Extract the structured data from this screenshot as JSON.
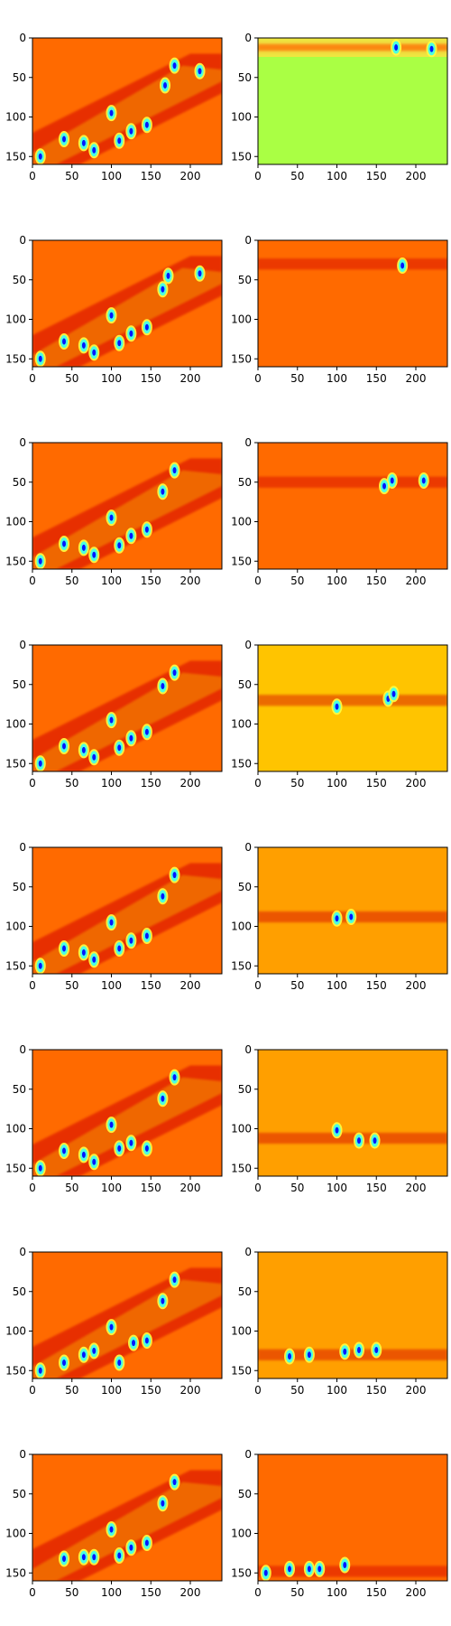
{
  "chart_data": {
    "type": "heatmap",
    "layout": "8 rows x 2 columns of image panels",
    "colormap": "jet",
    "x_axis": {
      "range": [
        0,
        240
      ],
      "ticks": [
        0,
        50,
        100,
        150,
        200
      ]
    },
    "y_axis": {
      "range": [
        160,
        0
      ],
      "inverted": true,
      "ticks": [
        0,
        50,
        100,
        150
      ]
    },
    "tick_text": {
      "x": [
        "0",
        "50",
        "100",
        "150",
        "200"
      ],
      "y": [
        "0",
        "50",
        "100",
        "150"
      ]
    },
    "colors": {
      "orange_red": "#ff6a00",
      "orange": "#ff9f00",
      "yellow_orange": "#ffc400",
      "green_yellow": "#aaff44",
      "dark_red": "#d40000",
      "blue": "#0018ff",
      "cyan": "#4cffe0"
    },
    "panels": [
      {
        "row": 0,
        "col": 0,
        "background": "#ff6a00",
        "band_center": null,
        "hotspots": [
          [
            10,
            150
          ],
          [
            40,
            128
          ],
          [
            65,
            133
          ],
          [
            78,
            142
          ],
          [
            100,
            95
          ],
          [
            110,
            130
          ],
          [
            125,
            118
          ],
          [
            145,
            110
          ],
          [
            168,
            60
          ],
          [
            180,
            35
          ],
          [
            212,
            42
          ]
        ]
      },
      {
        "row": 0,
        "col": 1,
        "background": "#aaff44",
        "band_center": 12,
        "hotspots": [
          [
            175,
            12
          ],
          [
            220,
            14
          ]
        ]
      },
      {
        "row": 1,
        "col": 0,
        "background": "#ff6a00",
        "band_center": null,
        "hotspots": [
          [
            10,
            150
          ],
          [
            40,
            128
          ],
          [
            65,
            133
          ],
          [
            78,
            142
          ],
          [
            100,
            95
          ],
          [
            110,
            130
          ],
          [
            125,
            118
          ],
          [
            145,
            110
          ],
          [
            165,
            62
          ],
          [
            172,
            45
          ],
          [
            212,
            42
          ]
        ]
      },
      {
        "row": 1,
        "col": 1,
        "background": "#ff6a00",
        "band_center": 30,
        "hotspots": [
          [
            183,
            32
          ]
        ]
      },
      {
        "row": 2,
        "col": 0,
        "background": "#ff6a00",
        "band_center": null,
        "hotspots": [
          [
            10,
            150
          ],
          [
            40,
            128
          ],
          [
            65,
            133
          ],
          [
            78,
            142
          ],
          [
            100,
            95
          ],
          [
            110,
            130
          ],
          [
            125,
            118
          ],
          [
            145,
            110
          ],
          [
            165,
            62
          ],
          [
            180,
            35
          ]
        ]
      },
      {
        "row": 2,
        "col": 1,
        "background": "#ff6a00",
        "band_center": 50,
        "hotspots": [
          [
            170,
            48
          ],
          [
            210,
            48
          ],
          [
            160,
            55
          ]
        ]
      },
      {
        "row": 3,
        "col": 0,
        "background": "#ff6a00",
        "band_center": null,
        "hotspots": [
          [
            10,
            150
          ],
          [
            40,
            128
          ],
          [
            65,
            133
          ],
          [
            78,
            142
          ],
          [
            100,
            95
          ],
          [
            110,
            130
          ],
          [
            125,
            118
          ],
          [
            145,
            110
          ],
          [
            165,
            52
          ],
          [
            180,
            35
          ]
        ]
      },
      {
        "row": 3,
        "col": 1,
        "background": "#ffc400",
        "band_center": 70,
        "hotspots": [
          [
            100,
            78
          ],
          [
            165,
            68
          ],
          [
            172,
            62
          ]
        ]
      },
      {
        "row": 4,
        "col": 0,
        "background": "#ff6a00",
        "band_center": null,
        "hotspots": [
          [
            10,
            150
          ],
          [
            40,
            128
          ],
          [
            65,
            133
          ],
          [
            78,
            142
          ],
          [
            100,
            95
          ],
          [
            110,
            128
          ],
          [
            125,
            118
          ],
          [
            145,
            112
          ],
          [
            165,
            62
          ],
          [
            180,
            35
          ]
        ]
      },
      {
        "row": 4,
        "col": 1,
        "background": "#ff9f00",
        "band_center": 88,
        "hotspots": [
          [
            100,
            90
          ],
          [
            118,
            88
          ]
        ]
      },
      {
        "row": 5,
        "col": 0,
        "background": "#ff6a00",
        "band_center": null,
        "hotspots": [
          [
            10,
            150
          ],
          [
            40,
            128
          ],
          [
            65,
            133
          ],
          [
            78,
            142
          ],
          [
            100,
            95
          ],
          [
            110,
            125
          ],
          [
            125,
            118
          ],
          [
            145,
            125
          ],
          [
            165,
            62
          ],
          [
            180,
            35
          ]
        ]
      },
      {
        "row": 5,
        "col": 1,
        "background": "#ff9f00",
        "band_center": 112,
        "hotspots": [
          [
            128,
            115
          ],
          [
            148,
            115
          ],
          [
            100,
            102
          ]
        ]
      },
      {
        "row": 6,
        "col": 0,
        "background": "#ff6a00",
        "band_center": null,
        "hotspots": [
          [
            10,
            150
          ],
          [
            40,
            140
          ],
          [
            65,
            130
          ],
          [
            78,
            125
          ],
          [
            100,
            95
          ],
          [
            110,
            140
          ],
          [
            128,
            115
          ],
          [
            145,
            112
          ],
          [
            165,
            62
          ],
          [
            180,
            35
          ]
        ]
      },
      {
        "row": 6,
        "col": 1,
        "background": "#ff9f00",
        "band_center": 130,
        "hotspots": [
          [
            40,
            132
          ],
          [
            65,
            130
          ],
          [
            110,
            126
          ],
          [
            128,
            124
          ],
          [
            150,
            124
          ]
        ]
      },
      {
        "row": 7,
        "col": 0,
        "background": "#ff6a00",
        "band_center": null,
        "hotspots": [
          [
            40,
            132
          ],
          [
            65,
            130
          ],
          [
            78,
            130
          ],
          [
            100,
            95
          ],
          [
            110,
            128
          ],
          [
            125,
            118
          ],
          [
            145,
            112
          ],
          [
            165,
            62
          ],
          [
            180,
            35
          ]
        ]
      },
      {
        "row": 7,
        "col": 1,
        "background": "#ff6a00",
        "band_center": 148,
        "hotspots": [
          [
            10,
            150
          ],
          [
            40,
            145
          ],
          [
            65,
            145
          ],
          [
            78,
            145
          ],
          [
            110,
            140
          ]
        ]
      }
    ]
  }
}
